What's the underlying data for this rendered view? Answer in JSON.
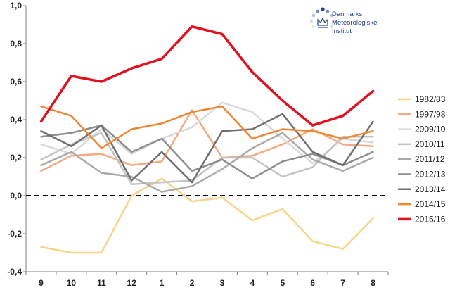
{
  "chart_data": {
    "type": "line",
    "title": "",
    "xlabel": "",
    "ylabel": "",
    "categories": [
      "9",
      "10",
      "11",
      "12",
      "1",
      "2",
      "3",
      "4",
      "5",
      "6",
      "7",
      "8"
    ],
    "ylim": [
      -0.4,
      1.0
    ],
    "yticks": [
      "1,0",
      "0,8",
      "0,6",
      "0,4",
      "0,2",
      "0,0",
      "-0,2",
      "-0,4"
    ],
    "ytick_values": [
      1.0,
      0.8,
      0.6,
      0.4,
      0.2,
      0.0,
      -0.2,
      -0.4
    ],
    "grid": false,
    "legend_position": "right",
    "zero_line": {
      "value": 0.0,
      "style": "dashed",
      "color": "#000000"
    },
    "series": [
      {
        "name": "1982/83",
        "color": "#f7d48a",
        "width": 2.5,
        "values": [
          -0.27,
          -0.3,
          -0.3,
          0.0,
          0.09,
          -0.03,
          -0.01,
          -0.13,
          -0.07,
          -0.24,
          -0.28,
          -0.12
        ]
      },
      {
        "name": "1997/98",
        "color": "#f4aa80",
        "width": 2.5,
        "values": [
          0.13,
          0.21,
          0.22,
          0.16,
          0.18,
          0.45,
          0.2,
          0.21,
          0.27,
          0.35,
          0.27,
          0.26
        ]
      },
      {
        "name": "2009/10",
        "color": "#d9d9d9",
        "width": 2.5,
        "values": [
          0.27,
          0.22,
          0.35,
          0.22,
          0.3,
          0.36,
          0.49,
          0.44,
          0.3,
          0.17,
          0.3,
          0.28
        ]
      },
      {
        "name": "2010/11",
        "color": "#c4c4c4",
        "width": 2.5,
        "values": [
          0.19,
          0.27,
          0.33,
          0.06,
          0.07,
          0.08,
          0.2,
          0.2,
          0.1,
          0.15,
          0.31,
          0.31
        ]
      },
      {
        "name": "2011/12",
        "color": "#aaaaaa",
        "width": 2.5,
        "values": [
          0.16,
          0.23,
          0.12,
          0.1,
          0.02,
          0.05,
          0.14,
          0.25,
          0.33,
          0.19,
          0.13,
          0.2
        ]
      },
      {
        "name": "2012/13",
        "color": "#8e8e8e",
        "width": 2.5,
        "values": [
          0.31,
          0.33,
          0.37,
          0.23,
          0.3,
          0.13,
          0.19,
          0.09,
          0.18,
          0.22,
          0.16,
          0.23
        ]
      },
      {
        "name": "2013/14",
        "color": "#707070",
        "width": 2.5,
        "values": [
          0.34,
          0.26,
          0.37,
          0.08,
          0.23,
          0.07,
          0.34,
          0.35,
          0.43,
          0.23,
          0.16,
          0.39
        ]
      },
      {
        "name": "2014/15",
        "color": "#ef8734",
        "width": 2.5,
        "values": [
          0.47,
          0.42,
          0.25,
          0.35,
          0.38,
          0.44,
          0.47,
          0.3,
          0.35,
          0.34,
          0.3,
          0.34
        ]
      },
      {
        "name": "2015/16",
        "color": "#e3101f",
        "width": 3.5,
        "values": [
          0.39,
          0.63,
          0.6,
          0.67,
          0.72,
          0.89,
          0.85,
          0.65,
          0.5,
          0.37,
          0.42,
          0.55
        ]
      }
    ]
  },
  "logo": {
    "name": "Danmarks Meteorologiske Institut",
    "lines": [
      "Danmarks",
      "Meteorologiske",
      "Institut"
    ],
    "color": "#1f3f8a"
  }
}
